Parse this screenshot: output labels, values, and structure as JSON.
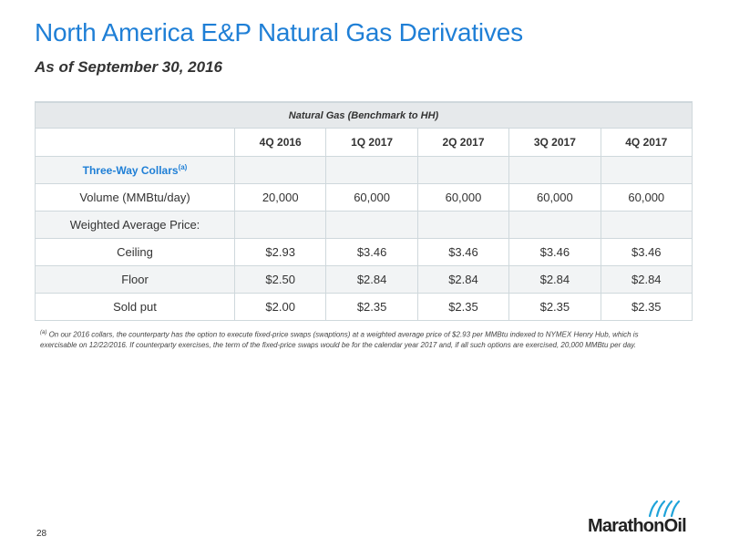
{
  "header": {
    "title": "North America E&P Natural Gas Derivatives",
    "subtitle": "As of September 30, 2016"
  },
  "table": {
    "banner": "Natural Gas (Benchmark to HH)",
    "columns": [
      "4Q 2016",
      "1Q 2017",
      "2Q 2017",
      "3Q 2017",
      "4Q 2017"
    ],
    "section_label": "Three-Way Collars",
    "section_marker": "(a)",
    "volume": {
      "label": "Volume (MMBtu/day)",
      "values": [
        "20,000",
        "60,000",
        "60,000",
        "60,000",
        "60,000"
      ]
    },
    "weighted_label": "Weighted Average Price:",
    "ceiling": {
      "label": "Ceiling",
      "values": [
        "$2.93",
        "$3.46",
        "$3.46",
        "$3.46",
        "$3.46"
      ]
    },
    "floor": {
      "label": "Floor",
      "values": [
        "$2.50",
        "$2.84",
        "$2.84",
        "$2.84",
        "$2.84"
      ]
    },
    "sold_put": {
      "label": "Sold put",
      "values": [
        "$2.00",
        "$2.35",
        "$2.35",
        "$2.35",
        "$2.35"
      ]
    }
  },
  "footnote": {
    "marker": "(a)",
    "text": "On our 2016 collars, the counterparty has the option to execute fixed-price swaps (swaptions) at a weighted average price of $2.93 per MMBtu indexed to NYMEX Henry Hub, which is exercisable on 12/22/2016. If counterparty exercises, the term of the fixed-price swaps would be for the calendar year 2017 and, if all such options are exercised, 20,000 MMBtu per day."
  },
  "page_number": "28",
  "logo": {
    "text": "MarathonOil",
    "color": "#1fa3d9",
    "icon": "marathon-wave-icon"
  }
}
